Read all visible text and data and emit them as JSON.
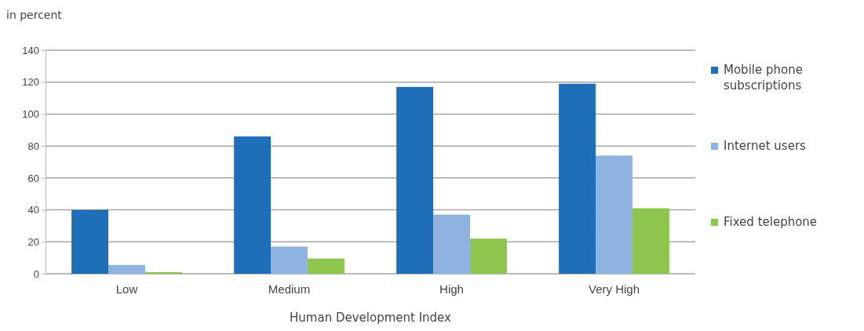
{
  "chart_data": {
    "type": "bar",
    "ylabel": "in percent",
    "xlabel": "Human Development Index",
    "categories": [
      "Low",
      "Medium",
      "High",
      "Very High"
    ],
    "series": [
      {
        "name": "Mobile phone subscriptions",
        "color": "#1f6fb8",
        "values": [
          40,
          86,
          117,
          119
        ]
      },
      {
        "name": "Internet users",
        "color": "#8eb3de",
        "values": [
          5.5,
          17,
          37,
          74
        ]
      },
      {
        "name": "Fixed telephone",
        "color": "#8dc54f",
        "values": [
          1,
          9.5,
          22,
          41
        ]
      }
    ],
    "ylim": [
      0,
      140
    ],
    "yticks": [
      0,
      20,
      40,
      60,
      80,
      100,
      120,
      140
    ],
    "grid": "y",
    "legend": "right"
  }
}
